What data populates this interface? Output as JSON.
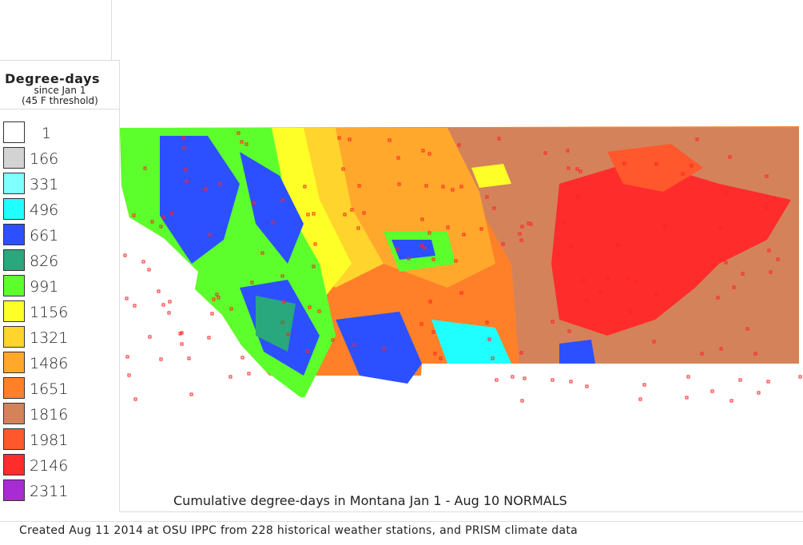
{
  "legend": {
    "title": "Degree-days",
    "subtitle_1": "since Jan 1",
    "subtitle_2": "(45 F threshold)",
    "items": [
      {
        "value": "1",
        "color": "#ffffff"
      },
      {
        "value": "166",
        "color": "#d3d3d3"
      },
      {
        "value": "331",
        "color": "#80ffff"
      },
      {
        "value": "496",
        "color": "#20ffff"
      },
      {
        "value": "661",
        "color": "#2c50ff"
      },
      {
        "value": "826",
        "color": "#28a87c"
      },
      {
        "value": "991",
        "color": "#5cff2c"
      },
      {
        "value": "1156",
        "color": "#ffff28"
      },
      {
        "value": "1321",
        "color": "#ffd42c"
      },
      {
        "value": "1486",
        "color": "#ffa82c"
      },
      {
        "value": "1651",
        "color": "#ff8028"
      },
      {
        "value": "1816",
        "color": "#d4825a"
      },
      {
        "value": "1981",
        "color": "#ff582c"
      },
      {
        "value": "2146",
        "color": "#ff2c2c"
      },
      {
        "value": "2311",
        "color": "#a82cd4"
      }
    ]
  },
  "map": {
    "region": "Montana",
    "station_marker_color": "#ff2020"
  },
  "title": "Cumulative degree-days in Montana  Jan 1 - Aug 10 NORMALS",
  "credit": "Created Aug 11 2014 at OSU IPPC from 228 historical weather stations, and PRISM climate data"
}
